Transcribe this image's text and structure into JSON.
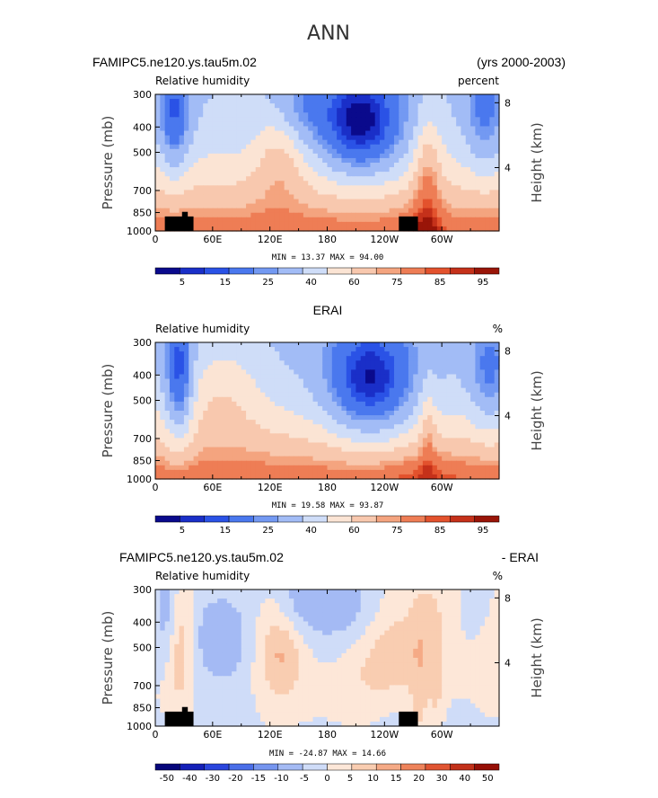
{
  "figure": {
    "season_title": "ANN"
  },
  "palette": {
    "abs": [
      "#0a0a8c",
      "#1a2fc8",
      "#2a52e6",
      "#4a78ee",
      "#7399f2",
      "#a2bcf6",
      "#cfddf8",
      "#fbe4d4",
      "#f8c8ae",
      "#f4a47f",
      "#ee7d55",
      "#e3522d",
      "#c5311a",
      "#991508"
    ],
    "diff": [
      "#06067a",
      "#1420b8",
      "#2a45dd",
      "#4a6ee8",
      "#7595ef",
      "#a4baf4",
      "#cfdcf8",
      "#fde7d8",
      "#f9cdb1",
      "#f5aa86",
      "#ee835b",
      "#e05532",
      "#c2311a",
      "#960f06"
    ],
    "land_mask": "#000000"
  },
  "chart_data": [
    {
      "type": "heatmap",
      "variable": "Relative humidity",
      "case_title_left": "FAMIPC5.ne120.ys.tau5m.02",
      "case_title_right": "(yrs 2000-2003)",
      "units": "percent",
      "ylabel": "Pressure (mb)",
      "ylabel_right": "Height (km)",
      "x_ticks": [
        "0",
        "60E",
        "120E",
        "180",
        "120W",
        "60W"
      ],
      "x_tick_lon": [
        0,
        60,
        120,
        180,
        240,
        300
      ],
      "xlim": [
        0,
        360
      ],
      "y_ticks": [
        300,
        400,
        500,
        700,
        850,
        1000
      ],
      "ylim": [
        1000,
        300
      ],
      "height_ticks": [
        8,
        4
      ],
      "stats": "MIN =   13.37   MAX =   94.00",
      "min": 13.37,
      "max": 94.0,
      "colorbar_labels": [
        "5",
        "15",
        "25",
        "40",
        "60",
        "75",
        "85",
        "95"
      ],
      "palette": "abs",
      "field_id": "model"
    },
    {
      "type": "heatmap",
      "variable": "Relative humidity",
      "case_title_center": "ERAI",
      "units": "%",
      "ylabel": "Pressure (mb)",
      "ylabel_right": "Height (km)",
      "x_ticks": [
        "0",
        "60E",
        "120E",
        "180",
        "120W",
        "60W"
      ],
      "x_tick_lon": [
        0,
        60,
        120,
        180,
        240,
        300
      ],
      "xlim": [
        0,
        360
      ],
      "y_ticks": [
        300,
        400,
        500,
        700,
        850,
        1000
      ],
      "ylim": [
        1000,
        300
      ],
      "height_ticks": [
        8,
        4
      ],
      "stats": "MIN =   19.58   MAX =   93.87",
      "min": 19.58,
      "max": 93.87,
      "colorbar_labels": [
        "5",
        "15",
        "25",
        "40",
        "60",
        "75",
        "85",
        "95"
      ],
      "palette": "abs",
      "field_id": "obs"
    },
    {
      "type": "heatmap",
      "variable": "Relative humidity",
      "case_title_left": "FAMIPC5.ne120.ys.tau5m.02",
      "case_title_right": "- ERAI",
      "units": "%",
      "ylabel": "Pressure (mb)",
      "ylabel_right": "Height (km)",
      "x_ticks": [
        "0",
        "60E",
        "120E",
        "180",
        "120W",
        "60W"
      ],
      "x_tick_lon": [
        0,
        60,
        120,
        180,
        240,
        300
      ],
      "xlim": [
        0,
        360
      ],
      "y_ticks": [
        300,
        400,
        500,
        700,
        850,
        1000
      ],
      "ylim": [
        1000,
        300
      ],
      "height_ticks": [
        8,
        4
      ],
      "stats": "MIN = -24.87   MAX =   14.66",
      "min": -24.87,
      "max": 14.66,
      "colorbar_labels": [
        "-50",
        "-40",
        "-30",
        "-20",
        "-15",
        "-10",
        "-5",
        "0",
        "5",
        "10",
        "15",
        "20",
        "30",
        "40",
        "50"
      ],
      "palette": "diff",
      "field_id": "diff"
    }
  ]
}
